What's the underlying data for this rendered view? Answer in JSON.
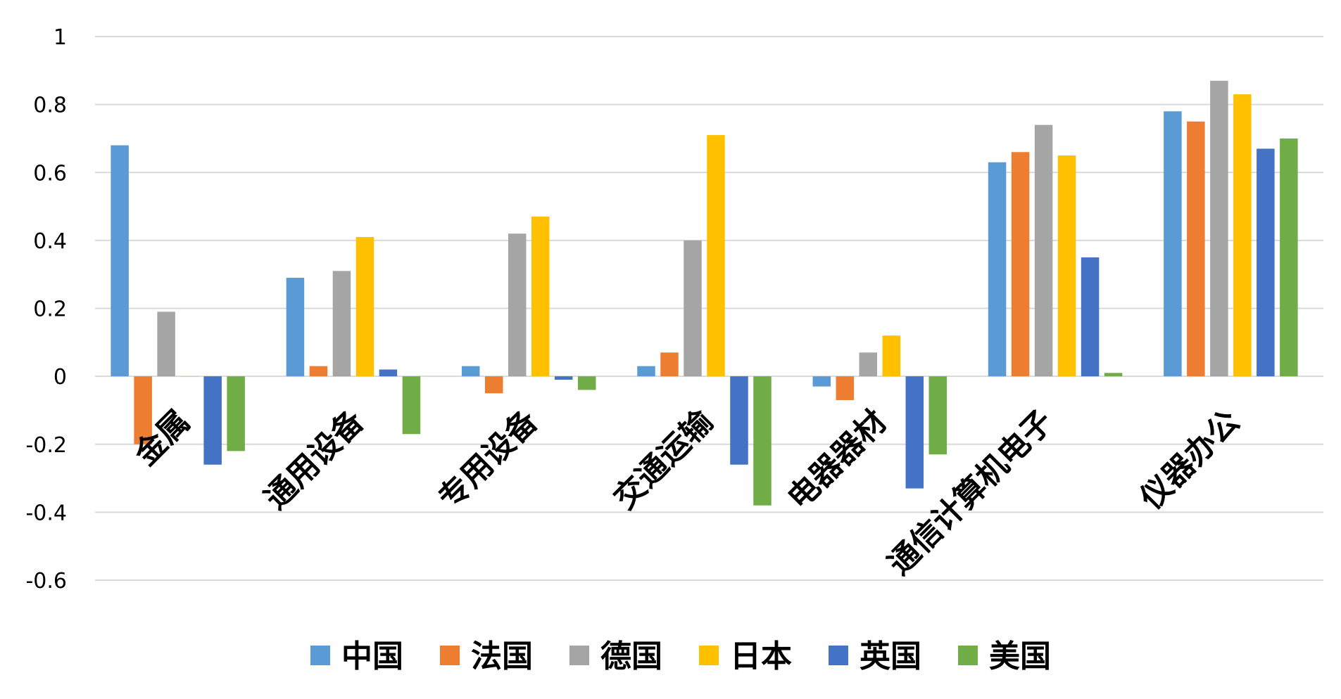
{
  "chart_data": {
    "type": "bar",
    "categories": [
      "金属",
      "通用设备",
      "专用设备",
      "交通运输",
      "电器器材",
      "通信计算机电子",
      "仪器办公"
    ],
    "series": [
      {
        "name": "中国",
        "color": "#5b9bd5",
        "values": [
          0.68,
          0.29,
          0.03,
          0.03,
          -0.03,
          0.63,
          0.78
        ]
      },
      {
        "name": "法国",
        "color": "#ed7d31",
        "values": [
          -0.2,
          0.03,
          -0.05,
          0.07,
          -0.07,
          0.66,
          0.75
        ]
      },
      {
        "name": "德国",
        "color": "#a5a5a5",
        "values": [
          0.19,
          0.31,
          0.42,
          0.4,
          0.07,
          0.74,
          0.87
        ]
      },
      {
        "name": "日本",
        "color": "#ffc000",
        "values": [
          0.0,
          0.41,
          0.47,
          0.71,
          0.12,
          0.65,
          0.83
        ]
      },
      {
        "name": "英国",
        "color": "#4472c4",
        "values": [
          -0.26,
          0.02,
          -0.01,
          -0.26,
          -0.33,
          0.35,
          0.67
        ]
      },
      {
        "name": "美国",
        "color": "#70ad47",
        "values": [
          -0.22,
          -0.17,
          -0.04,
          -0.38,
          -0.23,
          0.01,
          0.7
        ]
      }
    ],
    "yticks": [
      "1",
      "0.8",
      "0.6",
      "0.4",
      "0.2",
      "0",
      "-0.2",
      "-0.4",
      "-0.6"
    ],
    "ylim": [
      -0.6,
      1
    ],
    "grid": true,
    "legend_position": "bottom",
    "title": "",
    "xlabel": "",
    "ylabel": ""
  }
}
